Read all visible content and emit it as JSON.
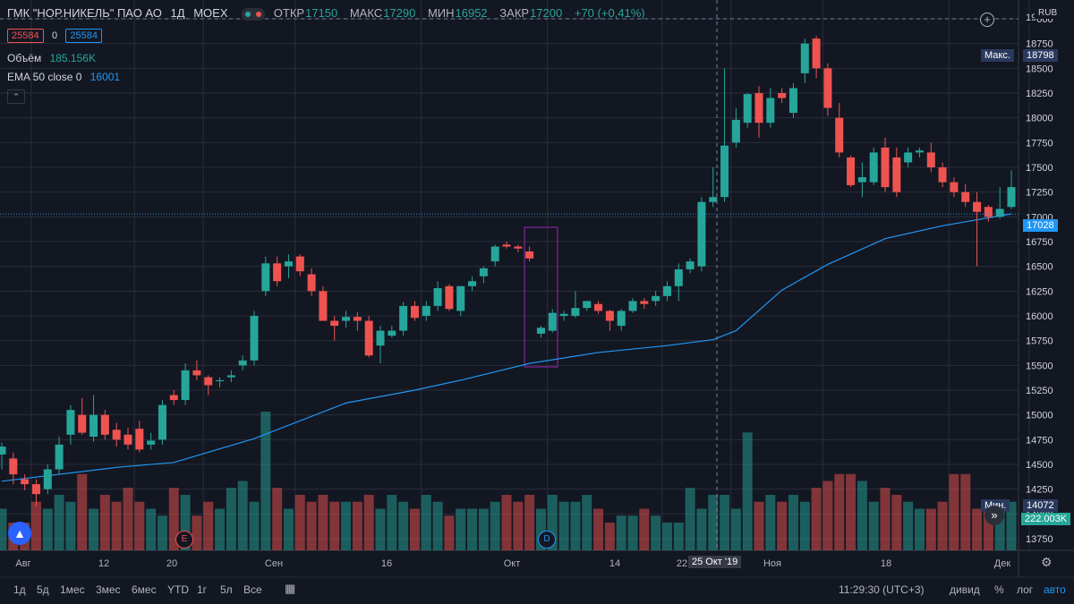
{
  "header": {
    "symbol": "ГМК \"НОР.НИКЕЛЬ\" ПАО АО",
    "interval": "1Д",
    "exchange": "MOEX",
    "ohlc": {
      "open_label": "ОТКР",
      "open": "17150",
      "high_label": "МАКС",
      "high": "17290",
      "low_label": "МИН",
      "low": "16952",
      "close_label": "ЗАКР",
      "close": "17200",
      "change": "+70 (+0,41%)"
    }
  },
  "legend": {
    "bid": "25584",
    "spread": "0",
    "ask": "25584",
    "volume_label": "Объём",
    "volume_value": "185.156K",
    "ema_label": "EMA 50 close 0",
    "ema_value": "16001"
  },
  "price_axis": {
    "currency": "RUB",
    "max_label": "Макс.",
    "max_value": "18798",
    "min_label": "Мин.",
    "min_value": "14072",
    "last_price": "17028",
    "volume_last": "222.003K",
    "top_partial": "19"
  },
  "crosshair": {
    "date_label": "25 Окт '19"
  },
  "x_axis_labels": [
    "Авг",
    "12",
    "20",
    "Сен",
    "16",
    "Окт",
    "14",
    "22",
    "Ноя",
    "18",
    "Дек"
  ],
  "events": {
    "earnings": "E",
    "dividend": "D"
  },
  "bottom_toolbar": {
    "ranges": [
      "1д",
      "5д",
      "1мес",
      "3мес",
      "6мес",
      "YTD",
      "1г",
      "5л",
      "Все"
    ],
    "time": "11:29:30 (UTC+3)",
    "adj": "дивид",
    "pct": "%",
    "log": "лог",
    "auto": "авто"
  },
  "colors": {
    "up": "#26a69a",
    "down": "#ef5350",
    "ema": "#2196f3",
    "bg": "#131722",
    "grid": "#2a2e39"
  },
  "chart_data": {
    "type": "candlestick",
    "ylim": [
      13600,
      19200
    ],
    "yticks": [
      13750,
      14000,
      14250,
      14500,
      14750,
      15000,
      15250,
      15500,
      15750,
      16000,
      16250,
      16500,
      16750,
      17000,
      17250,
      17500,
      17750,
      18000,
      18250,
      18500,
      18750,
      19000
    ],
    "candles": [
      {
        "o": 14600,
        "h": 14720,
        "l": 14450,
        "c": 14680
      },
      {
        "o": 14560,
        "h": 14620,
        "l": 14300,
        "c": 14400
      },
      {
        "o": 14350,
        "h": 14400,
        "l": 14240,
        "c": 14300
      },
      {
        "o": 14300,
        "h": 14350,
        "l": 14080,
        "c": 14200
      },
      {
        "o": 14250,
        "h": 14500,
        "l": 14200,
        "c": 14450
      },
      {
        "o": 14450,
        "h": 14780,
        "l": 14400,
        "c": 14700
      },
      {
        "o": 14800,
        "h": 15100,
        "l": 14700,
        "c": 15050
      },
      {
        "o": 15000,
        "h": 15170,
        "l": 14800,
        "c": 14820
      },
      {
        "o": 14780,
        "h": 15200,
        "l": 14730,
        "c": 15000
      },
      {
        "o": 15000,
        "h": 15050,
        "l": 14750,
        "c": 14800
      },
      {
        "o": 14850,
        "h": 14920,
        "l": 14680,
        "c": 14750
      },
      {
        "o": 14800,
        "h": 14870,
        "l": 14650,
        "c": 14700
      },
      {
        "o": 14860,
        "h": 14940,
        "l": 14620,
        "c": 14650
      },
      {
        "o": 14700,
        "h": 14820,
        "l": 14650,
        "c": 14740
      },
      {
        "o": 14750,
        "h": 15150,
        "l": 14700,
        "c": 15100
      },
      {
        "o": 15200,
        "h": 15250,
        "l": 15100,
        "c": 15150
      },
      {
        "o": 15150,
        "h": 15520,
        "l": 15100,
        "c": 15450
      },
      {
        "o": 15450,
        "h": 15550,
        "l": 15350,
        "c": 15400
      },
      {
        "o": 15380,
        "h": 15400,
        "l": 15200,
        "c": 15300
      },
      {
        "o": 15340,
        "h": 15380,
        "l": 15280,
        "c": 15350
      },
      {
        "o": 15380,
        "h": 15450,
        "l": 15330,
        "c": 15400
      },
      {
        "o": 15500,
        "h": 15600,
        "l": 15450,
        "c": 15550
      },
      {
        "o": 15550,
        "h": 16050,
        "l": 15500,
        "c": 16000
      },
      {
        "o": 16250,
        "h": 16600,
        "l": 16200,
        "c": 16530
      },
      {
        "o": 16530,
        "h": 16600,
        "l": 16300,
        "c": 16350
      },
      {
        "o": 16500,
        "h": 16620,
        "l": 16380,
        "c": 16550
      },
      {
        "o": 16600,
        "h": 16620,
        "l": 16400,
        "c": 16450
      },
      {
        "o": 16420,
        "h": 16480,
        "l": 16200,
        "c": 16250
      },
      {
        "o": 16250,
        "h": 16300,
        "l": 15950,
        "c": 15950
      },
      {
        "o": 15950,
        "h": 16000,
        "l": 15750,
        "c": 15900
      },
      {
        "o": 15950,
        "h": 16050,
        "l": 15880,
        "c": 15990
      },
      {
        "o": 15990,
        "h": 16040,
        "l": 15850,
        "c": 15950
      },
      {
        "o": 15950,
        "h": 16000,
        "l": 15580,
        "c": 15600
      },
      {
        "o": 15700,
        "h": 15900,
        "l": 15520,
        "c": 15850
      },
      {
        "o": 15800,
        "h": 15900,
        "l": 15780,
        "c": 15850
      },
      {
        "o": 15850,
        "h": 16140,
        "l": 15800,
        "c": 16100
      },
      {
        "o": 16100,
        "h": 16150,
        "l": 15950,
        "c": 15980
      },
      {
        "o": 16000,
        "h": 16150,
        "l": 15950,
        "c": 16100
      },
      {
        "o": 16100,
        "h": 16350,
        "l": 16050,
        "c": 16280
      },
      {
        "o": 16300,
        "h": 16320,
        "l": 16050,
        "c": 16070
      },
      {
        "o": 16050,
        "h": 16300,
        "l": 16000,
        "c": 16300
      },
      {
        "o": 16300,
        "h": 16400,
        "l": 16250,
        "c": 16350
      },
      {
        "o": 16400,
        "h": 16500,
        "l": 16330,
        "c": 16480
      },
      {
        "o": 16550,
        "h": 16720,
        "l": 16500,
        "c": 16700
      },
      {
        "o": 16720,
        "h": 16750,
        "l": 16680,
        "c": 16700
      },
      {
        "o": 16700,
        "h": 16720,
        "l": 16640,
        "c": 16680
      },
      {
        "o": 16650,
        "h": 16700,
        "l": 16550,
        "c": 16580
      },
      {
        "o": 15820,
        "h": 15900,
        "l": 15780,
        "c": 15880
      },
      {
        "o": 15850,
        "h": 16070,
        "l": 15830,
        "c": 16030
      },
      {
        "o": 16000,
        "h": 16050,
        "l": 15950,
        "c": 16020
      },
      {
        "o": 16000,
        "h": 16250,
        "l": 15980,
        "c": 16080
      },
      {
        "o": 16080,
        "h": 16150,
        "l": 16050,
        "c": 16150
      },
      {
        "o": 16120,
        "h": 16150,
        "l": 16020,
        "c": 16050
      },
      {
        "o": 16050,
        "h": 16060,
        "l": 15850,
        "c": 15950
      },
      {
        "o": 15900,
        "h": 16070,
        "l": 15850,
        "c": 16050
      },
      {
        "o": 16050,
        "h": 16180,
        "l": 16030,
        "c": 16150
      },
      {
        "o": 16150,
        "h": 16180,
        "l": 16070,
        "c": 16120
      },
      {
        "o": 16150,
        "h": 16250,
        "l": 16100,
        "c": 16200
      },
      {
        "o": 16200,
        "h": 16350,
        "l": 16150,
        "c": 16300
      },
      {
        "o": 16300,
        "h": 16530,
        "l": 16150,
        "c": 16470
      },
      {
        "o": 16470,
        "h": 16580,
        "l": 16430,
        "c": 16550
      },
      {
        "o": 16500,
        "h": 17200,
        "l": 16450,
        "c": 17150
      },
      {
        "o": 17150,
        "h": 17500,
        "l": 17100,
        "c": 17200
      },
      {
        "o": 17200,
        "h": 18500,
        "l": 17150,
        "c": 17720
      },
      {
        "o": 17750,
        "h": 18100,
        "l": 17700,
        "c": 17980
      },
      {
        "o": 17950,
        "h": 18250,
        "l": 17900,
        "c": 18240
      },
      {
        "o": 18250,
        "h": 18320,
        "l": 17800,
        "c": 17950
      },
      {
        "o": 17950,
        "h": 18300,
        "l": 17900,
        "c": 18200
      },
      {
        "o": 18250,
        "h": 18300,
        "l": 18150,
        "c": 18200
      },
      {
        "o": 18050,
        "h": 18350,
        "l": 18000,
        "c": 18300
      },
      {
        "o": 18450,
        "h": 18800,
        "l": 18350,
        "c": 18750
      },
      {
        "o": 18800,
        "h": 18830,
        "l": 18400,
        "c": 18500
      },
      {
        "o": 18500,
        "h": 18550,
        "l": 18020,
        "c": 18100
      },
      {
        "o": 18000,
        "h": 18150,
        "l": 17600,
        "c": 17650
      },
      {
        "o": 17600,
        "h": 17620,
        "l": 17300,
        "c": 17320
      },
      {
        "o": 17350,
        "h": 17550,
        "l": 17200,
        "c": 17400
      },
      {
        "o": 17350,
        "h": 17700,
        "l": 17320,
        "c": 17650
      },
      {
        "o": 17700,
        "h": 17800,
        "l": 17250,
        "c": 17300
      },
      {
        "o": 17600,
        "h": 17700,
        "l": 17200,
        "c": 17250
      },
      {
        "o": 17550,
        "h": 17700,
        "l": 17500,
        "c": 17650
      },
      {
        "o": 17650,
        "h": 17700,
        "l": 17600,
        "c": 17670
      },
      {
        "o": 17650,
        "h": 17750,
        "l": 17450,
        "c": 17500
      },
      {
        "o": 17500,
        "h": 17550,
        "l": 17300,
        "c": 17350
      },
      {
        "o": 17350,
        "h": 17400,
        "l": 17200,
        "c": 17250
      },
      {
        "o": 17250,
        "h": 17330,
        "l": 17100,
        "c": 17150
      },
      {
        "o": 17150,
        "h": 17250,
        "l": 16500,
        "c": 17050
      },
      {
        "o": 17100,
        "h": 17120,
        "l": 16950,
        "c": 17000
      },
      {
        "o": 17000,
        "h": 17300,
        "l": 16980,
        "c": 17080
      },
      {
        "o": 17100,
        "h": 17470,
        "l": 17080,
        "c": 17300
      }
    ],
    "volume_relative": [
      0.3,
      0.2,
      0.2,
      0.35,
      0.3,
      0.4,
      0.35,
      0.55,
      0.3,
      0.4,
      0.35,
      0.45,
      0.35,
      0.3,
      0.25,
      0.45,
      0.4,
      0.25,
      0.35,
      0.3,
      0.45,
      0.5,
      0.35,
      1.0,
      0.45,
      0.3,
      0.4,
      0.35,
      0.4,
      0.35,
      0.35,
      0.35,
      0.4,
      0.3,
      0.4,
      0.35,
      0.3,
      0.4,
      0.35,
      0.25,
      0.3,
      0.3,
      0.3,
      0.35,
      0.4,
      0.35,
      0.4,
      0.3,
      0.4,
      0.35,
      0.35,
      0.4,
      0.3,
      0.2,
      0.25,
      0.25,
      0.3,
      0.25,
      0.2,
      0.2,
      0.45,
      0.3,
      0.4,
      0.4,
      0.3,
      0.85,
      0.35,
      0.4,
      0.35,
      0.4,
      0.35,
      0.45,
      0.5,
      0.55,
      0.55,
      0.5,
      0.35,
      0.45,
      0.4,
      0.35,
      0.3,
      0.3,
      0.35,
      0.55,
      0.55,
      0.3,
      0.3,
      0.3,
      0.35
    ],
    "ema50": [
      [
        0,
        14330
      ],
      [
        10,
        14470
      ],
      [
        15,
        14520
      ],
      [
        22,
        14760
      ],
      [
        30,
        15120
      ],
      [
        36,
        15250
      ],
      [
        40,
        15350
      ],
      [
        46,
        15520
      ],
      [
        52,
        15630
      ],
      [
        58,
        15700
      ],
      [
        62,
        15760
      ],
      [
        64,
        15850
      ],
      [
        68,
        16260
      ],
      [
        72,
        16520
      ],
      [
        77,
        16780
      ],
      [
        82,
        16910
      ],
      [
        88,
        17030
      ]
    ]
  }
}
